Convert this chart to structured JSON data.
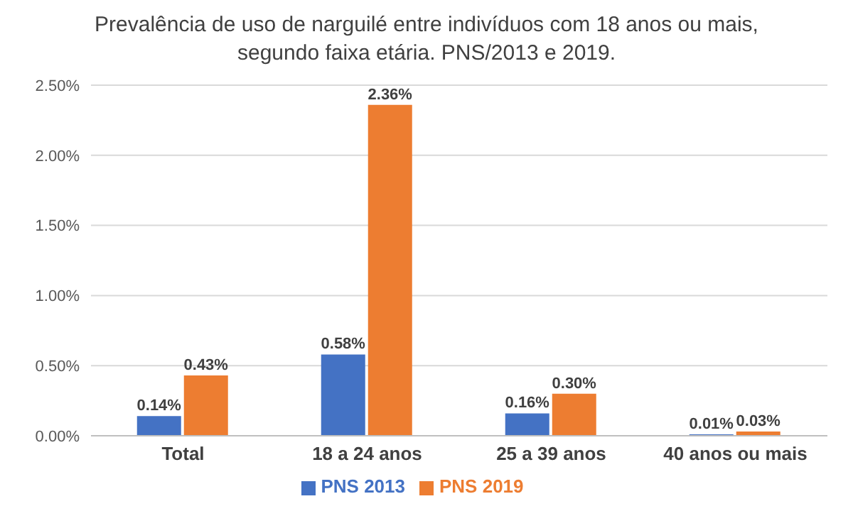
{
  "chart_data": {
    "type": "bar",
    "title": "Prevalência de uso de narguilé entre indivíduos com 18 anos ou mais, segundo faixa etária. PNS/2013 e 2019.",
    "categories": [
      "Total",
      "18 a 24 anos",
      "25 a 39 anos",
      "40 anos ou mais"
    ],
    "series": [
      {
        "name": "PNS 2013",
        "color": "#4472c4",
        "values": [
          0.14,
          0.58,
          0.16,
          0.01
        ],
        "value_labels": [
          "0.14%",
          "0.58%",
          "0.16%",
          "0.01%"
        ]
      },
      {
        "name": "PNS 2019",
        "color": "#ed7d31",
        "values": [
          0.43,
          2.36,
          0.3,
          0.03
        ],
        "value_labels": [
          "0.43%",
          "2.36%",
          "0.30%",
          "0.03%"
        ]
      }
    ],
    "ylim": [
      0,
      2.5
    ],
    "yticks": [
      {
        "value": 0,
        "label": "0.00%"
      },
      {
        "value": 0.5,
        "label": "0.50%"
      },
      {
        "value": 1,
        "label": "1.00%"
      },
      {
        "value": 1.5,
        "label": "1.50%"
      },
      {
        "value": 2,
        "label": "2.00%"
      },
      {
        "value": 2.5,
        "label": "2.50%"
      }
    ],
    "grid": "y",
    "legend": "bottom"
  }
}
